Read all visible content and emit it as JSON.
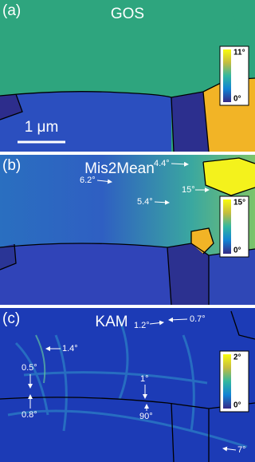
{
  "panels": [
    {
      "label": "(a)",
      "title": "GOS",
      "colorbar": {
        "max": "11°",
        "min": "0°"
      },
      "scale_bar": "1 μm"
    },
    {
      "label": "(b)",
      "title": "Mis2Mean",
      "colorbar": {
        "max": "15°",
        "min": "0°"
      },
      "annotations": [
        "4.4°",
        "15°",
        "6.2°",
        "5.4°"
      ]
    },
    {
      "label": "(c)",
      "title": "KAM",
      "colorbar": {
        "max": "2°",
        "min": "0°"
      },
      "annotations": [
        "1.2°",
        "0.7°",
        "1.4°",
        "0.5°",
        "0.8°",
        "1°",
        "90°",
        "7°"
      ]
    }
  ]
}
